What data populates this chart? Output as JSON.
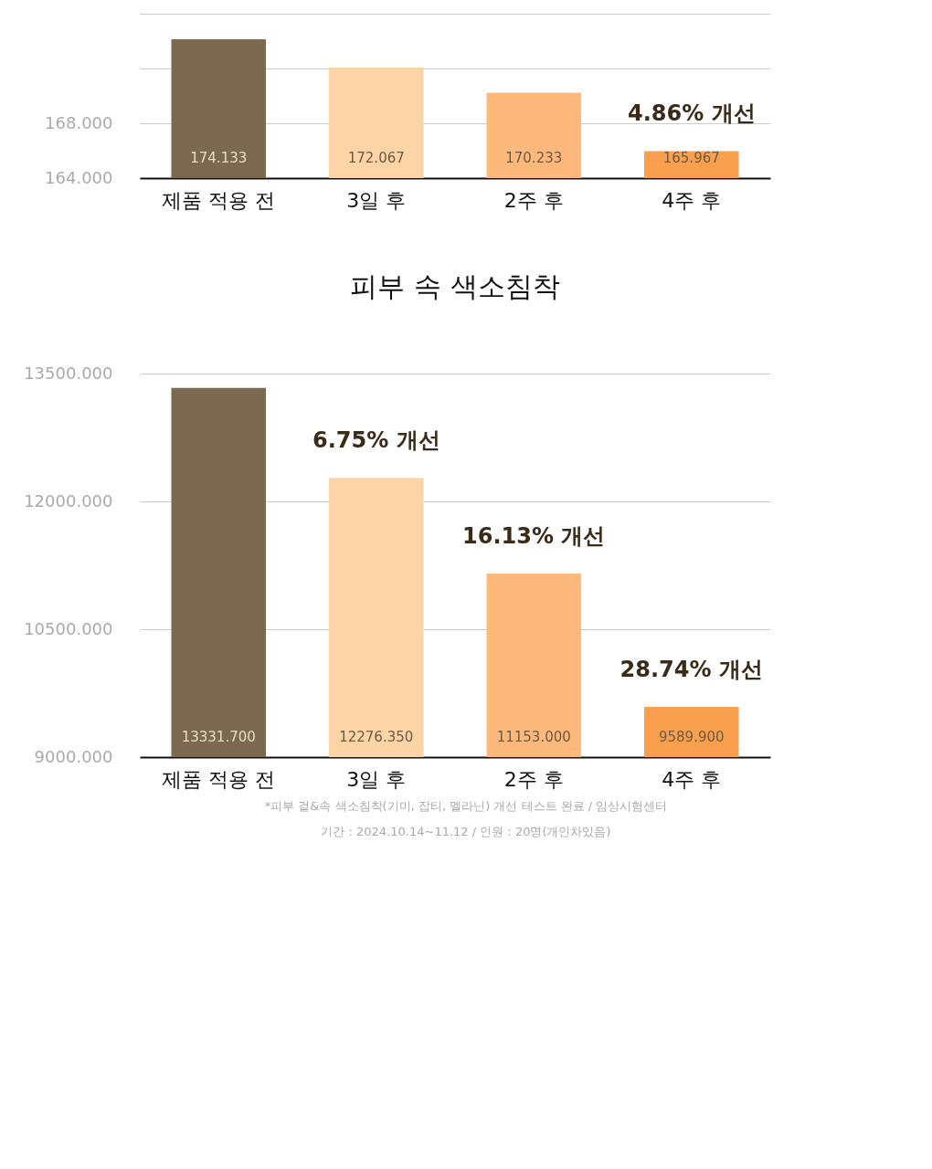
{
  "chart_data": [
    {
      "type": "bar",
      "categories": [
        "제품 적용 전",
        "3일 후",
        "2주 후",
        "4주 후"
      ],
      "values": [
        174.133,
        172.067,
        170.233,
        165.967
      ],
      "colors": [
        "#7b6a4f",
        "#fdd4a6",
        "#fdb97b",
        "#f9a04f"
      ],
      "value_labels": [
        "174.133",
        "172.067",
        "170.233",
        "165.967"
      ],
      "ylim": [
        164,
        176
      ],
      "yticks": [
        {
          "value": 164,
          "label": "164.000"
        },
        {
          "value": 168,
          "label": "168.000"
        },
        {
          "value": 172,
          "label": null
        },
        {
          "value": 176,
          "label": null
        }
      ],
      "grid": "y",
      "annotations": [
        {
          "text": "4.86% 개선",
          "x": "4주 후",
          "y": 165.967
        }
      ]
    },
    {
      "type": "bar",
      "title": "피부 속 색소침착",
      "categories": [
        "제품 적용 전",
        "3일 후",
        "2주 후",
        "4주 후"
      ],
      "values": [
        13331.7,
        12276.35,
        11153.0,
        9589.9
      ],
      "colors": [
        "#7b6a4f",
        "#fdd4a6",
        "#fdb97b",
        "#f9a04f"
      ],
      "value_labels": [
        "13331.700",
        "12276.350",
        "11153.000",
        "9589.900"
      ],
      "ylim": [
        9000,
        13500
      ],
      "yticks": [
        {
          "value": 9000,
          "label": "9000.000"
        },
        {
          "value": 10500,
          "label": "10500.000"
        },
        {
          "value": 12000,
          "label": "12000.000"
        },
        {
          "value": 13500,
          "label": "13500.000"
        }
      ],
      "grid": "y",
      "annotations": [
        {
          "text": "6.75% 개선",
          "x": "3일 후",
          "y": 12276.35
        },
        {
          "text": "16.13% 개선",
          "x": "2주 후",
          "y": 11153.0
        },
        {
          "text": "28.74% 개선",
          "x": "4주 후",
          "y": 9589.9
        },
        "*피부 겉&속 색소침착(기미, 잡티, 멜라닌) 개선 테스트 완료 / 임상시험센터",
        "기간 : 2024.10.14~11.12 / 인원 : 20명(개인차있음)"
      ]
    }
  ]
}
